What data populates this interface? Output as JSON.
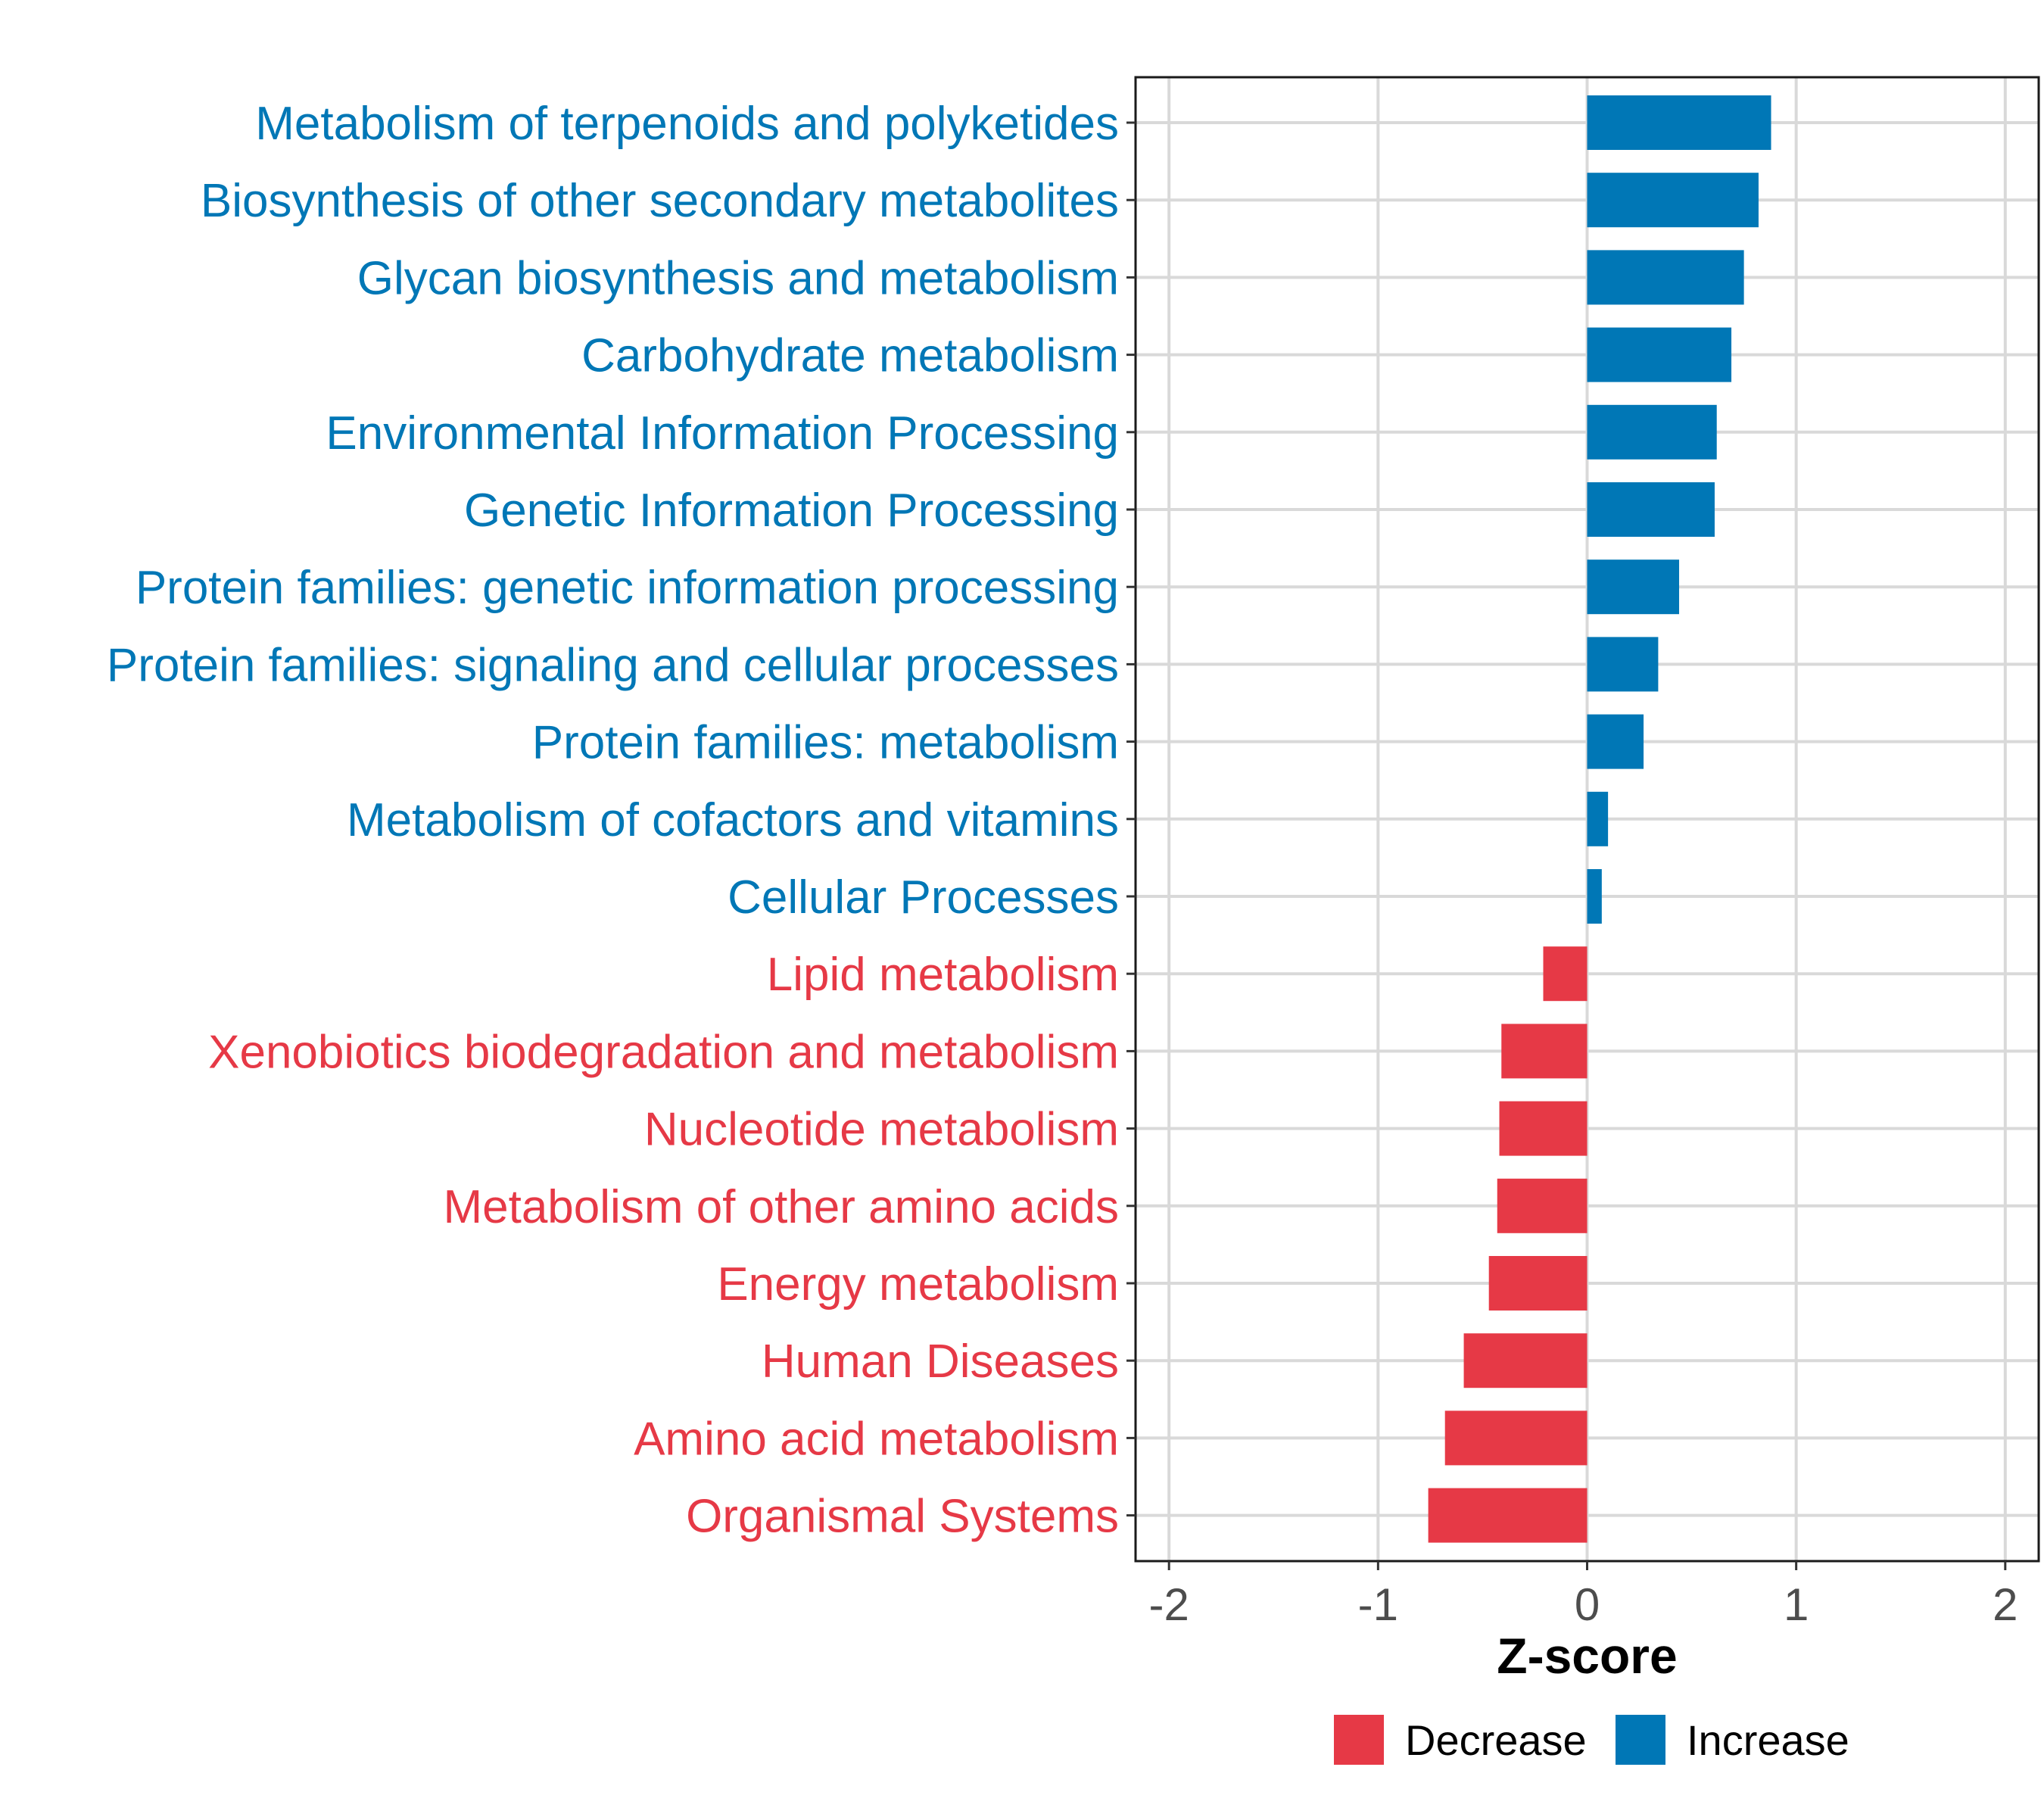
{
  "chart_data": {
    "type": "bar",
    "orientation": "horizontal",
    "title": "",
    "xlabel": "Z-score",
    "ylabel": "",
    "xlim": [
      -2,
      2
    ],
    "xticks": [
      "-2",
      "-1",
      "0",
      "1",
      "2"
    ],
    "grid": true,
    "legend_position": "bottom",
    "legend": [
      {
        "label": "Decrease",
        "color": "#E63946"
      },
      {
        "label": "Increase",
        "color": "#0077B6"
      }
    ],
    "categories": [
      "Metabolism of terpenoids and polyketides",
      "Biosynthesis of other secondary metabolites",
      "Glycan biosynthesis and metabolism",
      "Carbohydrate metabolism",
      "Environmental Information Processing",
      "Genetic Information Processing",
      "Protein families: genetic information processing",
      "Protein families: signaling and cellular processes",
      "Protein families: metabolism",
      "Metabolism of cofactors and vitamins",
      "Cellular Processes",
      "Lipid metabolism",
      "Xenobiotics biodegradation and metabolism",
      "Nucleotide metabolism",
      "Metabolism of other amino acids",
      "Energy metabolism",
      "Human Diseases",
      "Amino acid metabolism",
      "Organismal Systems"
    ],
    "values": [
      0.88,
      0.82,
      0.75,
      0.69,
      0.62,
      0.61,
      0.44,
      0.34,
      0.27,
      0.1,
      0.07,
      -0.21,
      -0.41,
      -0.42,
      -0.43,
      -0.47,
      -0.59,
      -0.68,
      -0.76
    ],
    "groups": [
      "Increase",
      "Increase",
      "Increase",
      "Increase",
      "Increase",
      "Increase",
      "Increase",
      "Increase",
      "Increase",
      "Increase",
      "Increase",
      "Decrease",
      "Decrease",
      "Decrease",
      "Decrease",
      "Decrease",
      "Decrease",
      "Decrease",
      "Decrease"
    ]
  }
}
